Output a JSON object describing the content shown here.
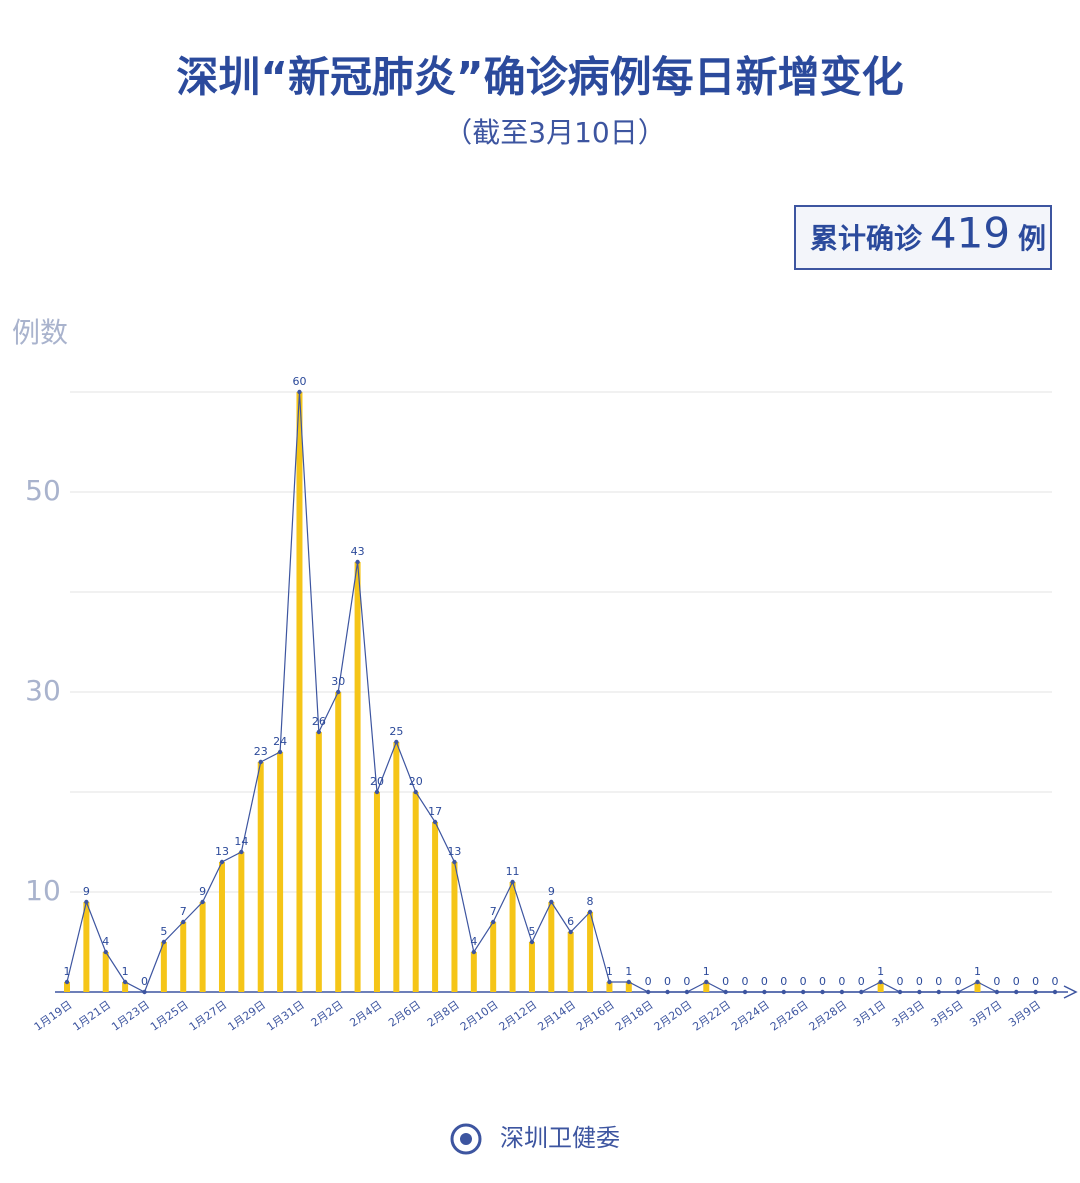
{
  "chart_data": {
    "type": "bar",
    "title": "深圳“新冠肺炎”确诊病例每日新增变化",
    "subtitle": "（截至3月10日）",
    "total_box": {
      "prefix": "累计确诊",
      "value": "419",
      "suffix": "例"
    },
    "y_label": "例数",
    "source": "深圳卫健委",
    "categories": [
      "1月19日",
      null,
      "1月21日",
      null,
      "1月23日",
      null,
      "1月25日",
      null,
      "1月27日",
      null,
      "1月29日",
      null,
      "1月31日",
      null,
      "2月2日",
      null,
      "2月4日",
      null,
      "2月6日",
      null,
      "2月8日",
      null,
      "2月10日",
      null,
      "2月12日",
      null,
      "2月14日",
      null,
      "2月16日",
      null,
      "2月18日",
      null,
      "2月20日",
      null,
      "2月22日",
      null,
      "2月24日",
      null,
      "2月26日",
      null,
      "2月28日",
      null,
      "3月1日",
      null,
      "3月3日",
      null,
      "3月5日",
      null,
      "3月7日",
      null,
      "3月9日",
      null
    ],
    "values": [
      1,
      9,
      4,
      1,
      0,
      5,
      7,
      9,
      13,
      14,
      23,
      24,
      60,
      26,
      30,
      43,
      20,
      25,
      20,
      17,
      13,
      4,
      7,
      11,
      5,
      9,
      6,
      8,
      1,
      1,
      0,
      0,
      0,
      1,
      0,
      0,
      0,
      0,
      0,
      0,
      0,
      0,
      1,
      0,
      0,
      0,
      0,
      1,
      0,
      0,
      0,
      0
    ],
    "color": "#f5c518",
    "line_color": "#3d55a0",
    "ylim": [
      0,
      60
    ],
    "yticks": [
      10,
      30,
      50
    ],
    "minor_yticks": [
      20,
      40,
      60
    ],
    "grid": true
  }
}
